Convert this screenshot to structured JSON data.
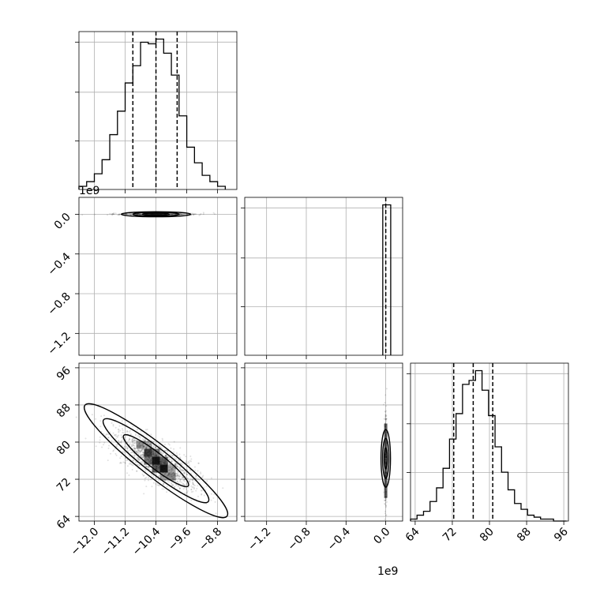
{
  "chart_data": {
    "type": "corner",
    "param_count": 3,
    "offset_labels": {
      "param1": "1e9"
    },
    "param0": {
      "ticks": [
        -12.0,
        -11.2,
        -10.4,
        -9.6,
        -8.8
      ],
      "tick_labels": [
        "−12.0",
        "−11.2",
        "−10.4",
        "−9.6",
        "−8.8"
      ],
      "range": [
        -12.4,
        -8.3
      ],
      "quantiles": [
        -11.0,
        -10.4,
        -9.85
      ],
      "histogram": {
        "edges": [
          -12.4,
          -12.2,
          -12.0,
          -11.8,
          -11.6,
          -11.4,
          -11.2,
          -11.0,
          -10.8,
          -10.6,
          -10.4,
          -10.2,
          -10.0,
          -9.8,
          -9.6,
          -9.4,
          -9.2,
          -9.0,
          -8.8,
          -8.6
        ],
        "counts": [
          2,
          5,
          10,
          19,
          35,
          50,
          68,
          79,
          94,
          93,
          96,
          87,
          73,
          47,
          27,
          17,
          9,
          5,
          2
        ]
      }
    },
    "param1": {
      "ticks": [
        -1.2,
        -0.8,
        -0.4,
        0.0
      ],
      "tick_labels": [
        "−1.2",
        "−0.8",
        "−0.4",
        "0.0"
      ],
      "range": [
        -1.42,
        0.17
      ],
      "quantiles": [
        0.0
      ],
      "histogram": {
        "edges": [
          -0.03,
          0.05
        ],
        "counts": [
          100
        ]
      }
    },
    "param2": {
      "ticks": [
        64,
        72,
        80,
        88,
        96
      ],
      "tick_labels": [
        "64",
        "72",
        "80",
        "88",
        "96"
      ],
      "range": [
        63,
        97
      ],
      "quantiles": [
        72.3,
        76.5,
        80.7
      ],
      "histogram": {
        "edges": [
          63,
          64.4,
          65.8,
          67.2,
          68.6,
          70,
          71.4,
          72.8,
          74.2,
          75.6,
          77,
          78.4,
          79.8,
          81.2,
          82.6,
          84,
          85.4,
          86.8,
          88.2,
          89.6,
          91,
          92.4,
          93.8,
          95.2,
          96.6
        ],
        "counts": [
          1,
          3,
          5,
          10,
          17,
          27,
          42,
          55,
          70,
          72,
          77,
          67,
          54,
          38,
          25,
          16,
          9,
          6,
          3,
          2,
          1,
          1,
          0,
          0
        ]
      }
    },
    "joint_0_2": {
      "center": [
        -10.4,
        76.0
      ],
      "contours": [
        {
          "level": 0.39,
          "half_width": [
            0.32,
            2.2
          ],
          "angle_deg": -38
        },
        {
          "level": 0.86,
          "half_width": [
            0.62,
            4.3
          ],
          "angle_deg": -38
        },
        {
          "level": 0.99,
          "half_width": [
            0.9,
            6.2
          ],
          "angle_deg": -38
        }
      ]
    },
    "grid": true
  }
}
